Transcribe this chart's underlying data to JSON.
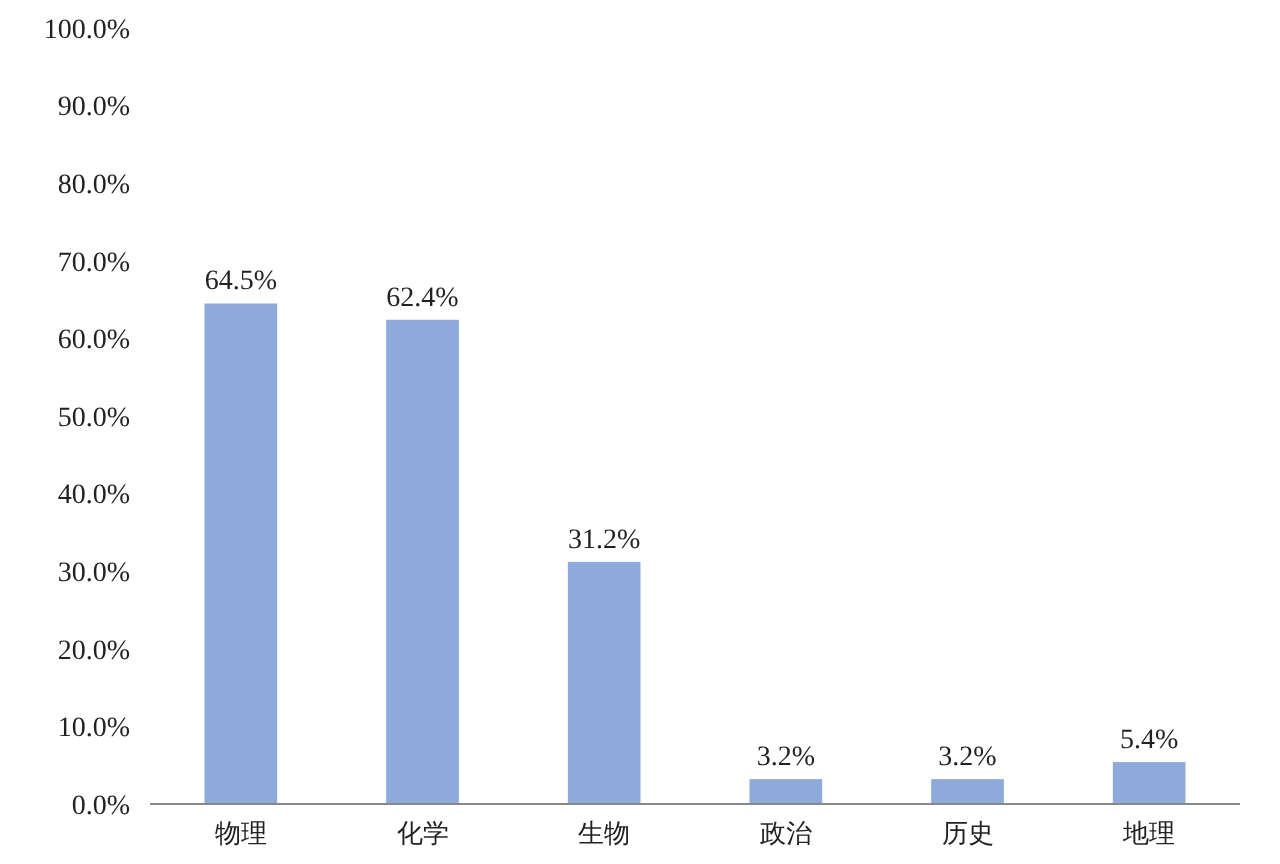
{
  "chart_data": {
    "type": "bar",
    "categories": [
      "物理",
      "化学",
      "生物",
      "政治",
      "历史",
      "地理"
    ],
    "values": [
      64.5,
      62.4,
      31.2,
      3.2,
      3.2,
      5.4
    ],
    "value_labels": [
      "64.5%",
      "62.4%",
      "31.2%",
      "3.2%",
      "3.2%",
      "5.4%"
    ],
    "color": "#8eaadb",
    "ylim": [
      0,
      100
    ],
    "yticks": [
      {
        "value": 0,
        "label": "0.0%"
      },
      {
        "value": 10,
        "label": "10.0%"
      },
      {
        "value": 20,
        "label": "20.0%"
      },
      {
        "value": 30,
        "label": "30.0%"
      },
      {
        "value": 40,
        "label": "40.0%"
      },
      {
        "value": 50,
        "label": "50.0%"
      },
      {
        "value": 60,
        "label": "60.0%"
      },
      {
        "value": 70,
        "label": "70.0%"
      },
      {
        "value": 80,
        "label": "80.0%"
      },
      {
        "value": 90,
        "label": "90.0%"
      },
      {
        "value": 100,
        "label": "100.0%"
      }
    ],
    "grid": false
  }
}
